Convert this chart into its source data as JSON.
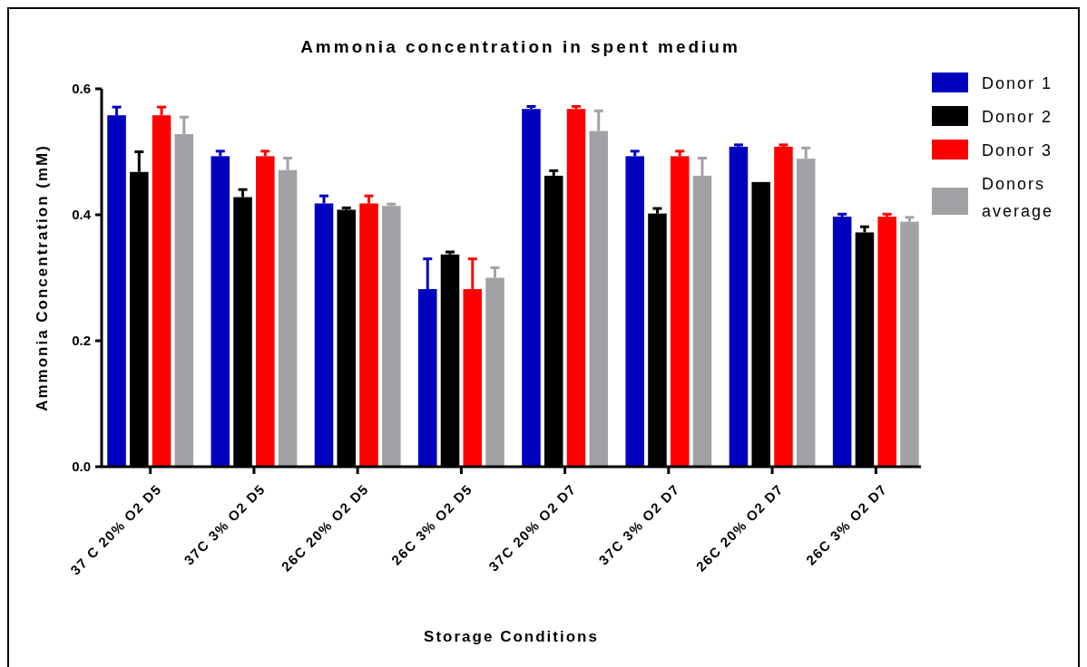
{
  "chart_data": {
    "type": "bar",
    "title": "Ammonia concentration in spent medium",
    "xlabel": "Storage Conditions",
    "ylabel": "Ammonia Concentration (mM)",
    "categories": [
      "37 C 20% O2 D5",
      "37C  3% O2 D5",
      "26C 20% O2 D5",
      "26C 3% O2 D5",
      "37C 20% O2 D7",
      "37C 3% O2 D7",
      "26C 20% O2 D7",
      "26C 3% O2 D7"
    ],
    "series": [
      {
        "name": "Donor 1",
        "color": "#0000bf",
        "values": [
          0.558,
          0.493,
          0.418,
          0.282,
          0.568,
          0.493,
          0.508,
          0.397
        ],
        "errors": [
          0.013,
          0.008,
          0.012,
          0.048,
          0.004,
          0.008,
          0.003,
          0.004
        ]
      },
      {
        "name": "Donor 2",
        "color": "#000000",
        "values": [
          0.468,
          0.428,
          0.408,
          0.337,
          0.462,
          0.402,
          0.452,
          0.372
        ],
        "errors": [
          0.032,
          0.012,
          0.003,
          0.004,
          0.008,
          0.008,
          null,
          0.009
        ]
      },
      {
        "name": "Donor 3",
        "color": "#ff0000",
        "values": [
          0.558,
          0.493,
          0.418,
          0.282,
          0.568,
          0.493,
          0.508,
          0.397
        ],
        "errors": [
          0.013,
          0.008,
          0.012,
          0.048,
          0.004,
          0.008,
          0.003,
          0.004
        ]
      },
      {
        "name": "Donors average",
        "color": "#a2a1a6",
        "values": [
          0.528,
          0.471,
          0.414,
          0.3,
          0.533,
          0.462,
          0.489,
          0.389
        ],
        "errors": [
          0.027,
          0.019,
          0.003,
          0.016,
          0.032,
          0.028,
          0.017,
          0.007
        ]
      }
    ],
    "ylim": [
      0,
      0.6
    ],
    "yticks": [
      {
        "value": 0,
        "label": "0.0"
      },
      {
        "value": 0.2,
        "label": "0.2"
      },
      {
        "value": 0.4,
        "label": "0.4"
      },
      {
        "value": 0.6,
        "label": "0.6"
      }
    ],
    "grid": false,
    "legend": "top right"
  }
}
